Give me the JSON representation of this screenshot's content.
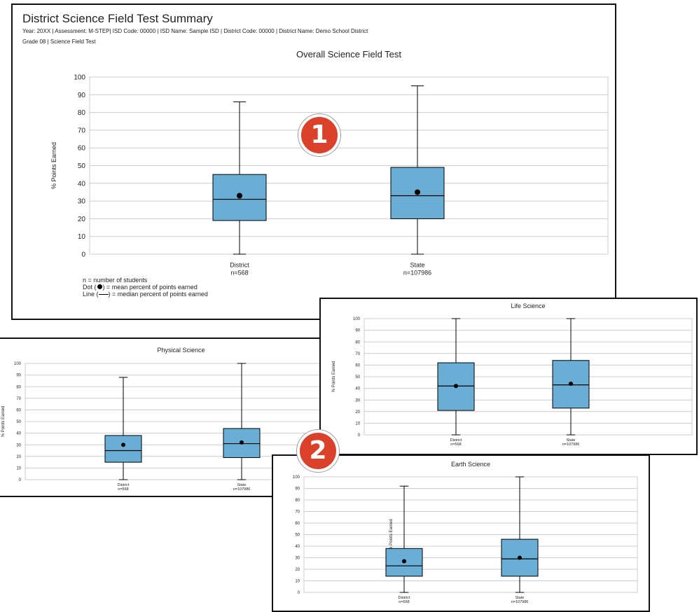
{
  "report": {
    "title": "District Science Field Test Summary",
    "meta_line": "Year: 20XX | Assessment: M-STEP| ISD Code: 00000 | ISD Name: Sample ISD  | District Code: 00000 | District Name: Demo School District",
    "grade_line": "Grade 08 | Science Field Test"
  },
  "legend": {
    "n_def": "n = number of students",
    "dot_def": "= mean percent of points earned",
    "dot_prefix": "Dot (",
    "dot_suffix": ")",
    "line_prefix": "Line (",
    "line_suffix": ") = median percent of points earned"
  },
  "markers": {
    "one": "1",
    "two": "2"
  },
  "colors": {
    "box_fill": "#6aaed6",
    "grid": "#cccccc",
    "marker": "#d9412a"
  },
  "chart_data": [
    {
      "type": "boxplot",
      "title": "Overall Science Field Test",
      "ylabel": "% Points Earned",
      "ylim": [
        0,
        100
      ],
      "yticks": [
        0,
        10,
        20,
        30,
        40,
        50,
        60,
        70,
        80,
        90,
        100
      ],
      "grid": true,
      "categories": [
        {
          "label": "District",
          "n": "n=568",
          "min": 0,
          "q1": 19,
          "median": 31,
          "q3": 45,
          "max": 86,
          "mean": 33
        },
        {
          "label": "State",
          "n": "n=107986",
          "min": 0,
          "q1": 20,
          "median": 33,
          "q3": 49,
          "max": 95,
          "mean": 35
        }
      ]
    },
    {
      "type": "boxplot",
      "title": "Physical Science",
      "ylabel": "% Points Earned",
      "ylim": [
        0,
        100
      ],
      "yticks": [
        0,
        10,
        20,
        30,
        40,
        50,
        60,
        70,
        80,
        90,
        100
      ],
      "grid": true,
      "categories": [
        {
          "label": "District",
          "n": "n=568",
          "min": 0,
          "q1": 15,
          "median": 25,
          "q3": 38,
          "max": 88,
          "mean": 30
        },
        {
          "label": "State",
          "n": "n=107986",
          "min": 0,
          "q1": 19,
          "median": 31,
          "q3": 44,
          "max": 100,
          "mean": 32
        }
      ]
    },
    {
      "type": "boxplot",
      "title": "Life Science",
      "ylabel": "% Points Earned",
      "ylim": [
        0,
        100
      ],
      "yticks": [
        0,
        10,
        20,
        30,
        40,
        50,
        60,
        70,
        80,
        90,
        100
      ],
      "grid": true,
      "categories": [
        {
          "label": "District",
          "n": "n=568",
          "min": 0,
          "q1": 21,
          "median": 42,
          "q3": 62,
          "max": 100,
          "mean": 42
        },
        {
          "label": "State",
          "n": "n=107986",
          "min": 0,
          "q1": 23,
          "median": 43,
          "q3": 64,
          "max": 100,
          "mean": 44
        }
      ]
    },
    {
      "type": "boxplot",
      "title": "Earth Science",
      "ylabel": "% Points Earned",
      "ylim": [
        0,
        100
      ],
      "yticks": [
        0,
        10,
        20,
        30,
        40,
        50,
        60,
        70,
        80,
        90,
        100
      ],
      "grid": true,
      "categories": [
        {
          "label": "District",
          "n": "n=568",
          "min": 0,
          "q1": 14,
          "median": 23,
          "q3": 38,
          "max": 92,
          "mean": 27
        },
        {
          "label": "State",
          "n": "n=107986",
          "min": 0,
          "q1": 14,
          "median": 29,
          "q3": 46,
          "max": 100,
          "mean": 30
        }
      ]
    }
  ]
}
